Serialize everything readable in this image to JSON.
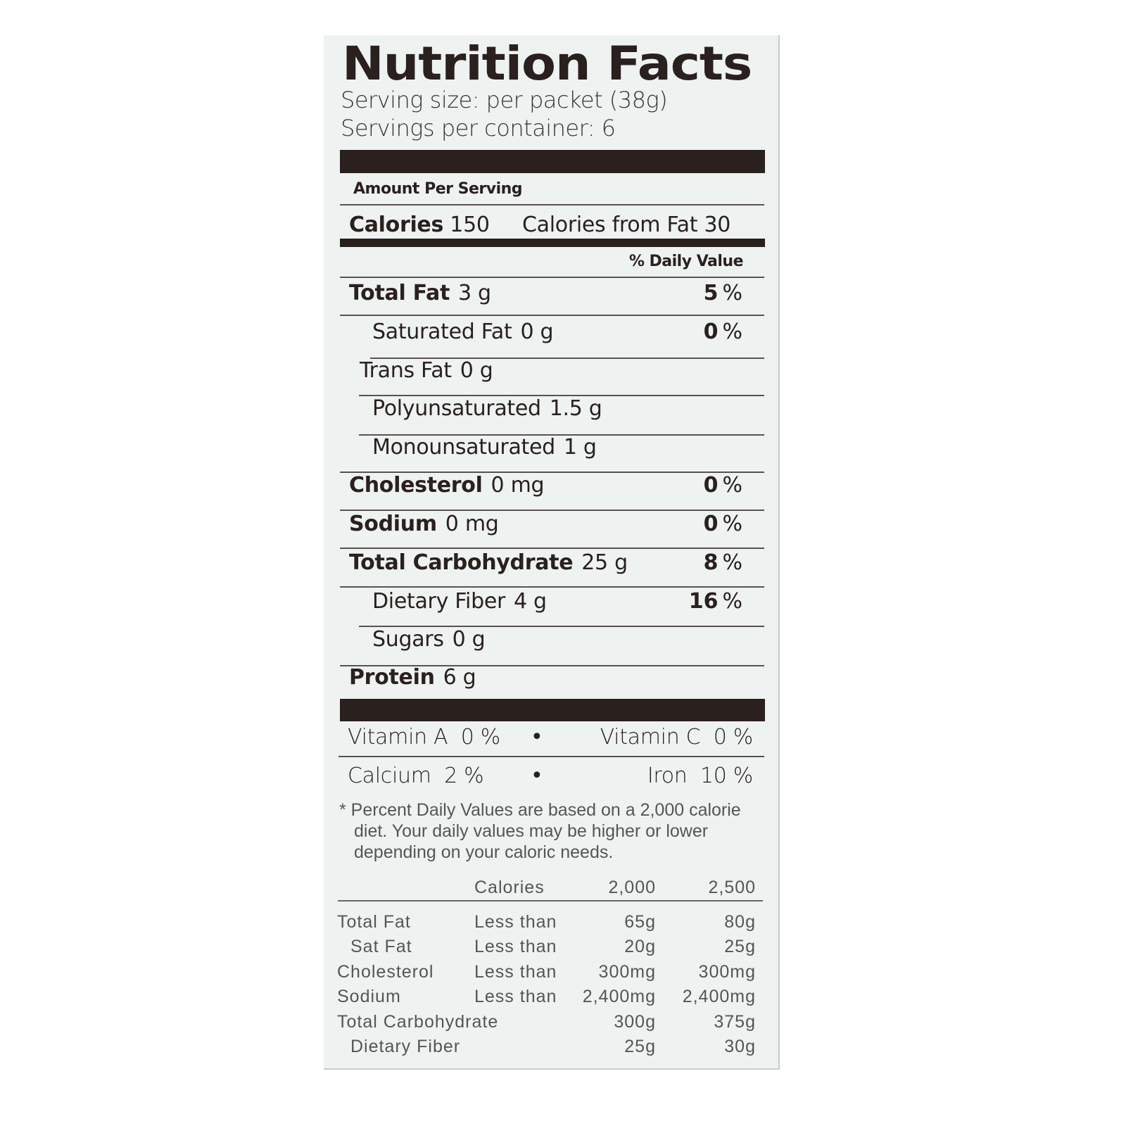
{
  "title": "Nutrition Facts",
  "serving_size": "Serving size: per packet (38g)",
  "servings_per_container": "Servings per container: 6",
  "amount_per_serving": "Amount Per Serving",
  "calories": {
    "label": "Calories",
    "value": "150",
    "from_fat_label": "Calories from Fat",
    "from_fat_value": "30"
  },
  "daily_value_header": "% Daily Value",
  "nutrients": [
    {
      "name": "Total Fat",
      "amount": "3 g",
      "dv": "5",
      "bold": true,
      "indent": 0
    },
    {
      "name": "Saturated Fat",
      "amount": "0 g",
      "dv": "0",
      "bold": false,
      "indent": 2
    },
    {
      "name": "Trans Fat",
      "amount": "0 g",
      "dv": "",
      "bold": false,
      "indent": 2
    },
    {
      "name": "Polyunsaturated",
      "amount": "1.5 g",
      "dv": "",
      "bold": false,
      "indent": 1
    },
    {
      "name": "Monounsaturated",
      "amount": "1 g",
      "dv": "",
      "bold": false,
      "indent": 1
    },
    {
      "name": "Cholesterol",
      "amount": "0 mg",
      "dv": "0",
      "bold": true,
      "indent": 0
    },
    {
      "name": "Sodium",
      "amount": "0 mg",
      "dv": "0",
      "bold": true,
      "indent": 0
    },
    {
      "name": "Total Carbohydrate",
      "amount": "25 g",
      "dv": "8",
      "bold": true,
      "indent": 0
    },
    {
      "name": "Dietary Fiber",
      "amount": "4 g",
      "dv": "16",
      "bold": false,
      "indent": 1
    },
    {
      "name": "Sugars",
      "amount": "0 g",
      "dv": "",
      "bold": false,
      "indent": 1
    },
    {
      "name": "Protein",
      "amount": "6 g",
      "dv": "",
      "bold": true,
      "indent": 0
    }
  ],
  "percent_sign": "%",
  "vitamins": [
    {
      "left": "Vitamin A  0 %",
      "right": "Vitamin C  0 %"
    },
    {
      "left": "Calcium  2 %",
      "right": "Iron  10 %"
    }
  ],
  "bullet": "•",
  "footnote": [
    "* Percent Daily Values are based on a 2,000 calorie",
    "diet. Your daily values may be higher or lower",
    "depending on your caloric needs."
  ],
  "dv_table": {
    "header": [
      "",
      "Calories",
      "2,000",
      "2,500"
    ],
    "rows": [
      [
        "Total Fat",
        "Less than",
        "65g",
        "80g"
      ],
      [
        "Sat Fat",
        "Less than",
        "20g",
        "25g"
      ],
      [
        "Cholesterol",
        "Less than",
        "300mg",
        "300mg"
      ],
      [
        "Sodium",
        "Less than",
        "2,400mg",
        "2,400mg"
      ],
      [
        "Total Carbohydrate",
        "",
        "300g",
        "375g"
      ],
      [
        "Dietary Fiber",
        "",
        "25g",
        "30g"
      ]
    ]
  },
  "colors": {
    "ink": "#2a201d",
    "panel": "#eef3f2",
    "footnote": "#555555"
  }
}
